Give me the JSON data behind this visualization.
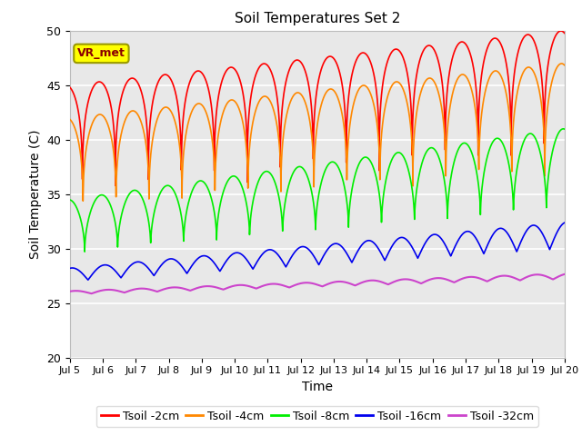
{
  "title": "Soil Temperatures Set 2",
  "xlabel": "Time",
  "ylabel": "Soil Temperature (C)",
  "ylim": [
    20,
    50
  ],
  "xlim_days": [
    5,
    20
  ],
  "background_color": "#e8e8e8",
  "grid_color": "white",
  "annotation_text": "VR_met",
  "annotation_box_color": "#ffff00",
  "annotation_box_edge": "#999900",
  "series": [
    {
      "label": "Tsoil -2cm",
      "color": "#ff0000",
      "lw": 1.2,
      "depth": 2
    },
    {
      "label": "Tsoil -4cm",
      "color": "#ff8800",
      "lw": 1.2,
      "depth": 4
    },
    {
      "label": "Tsoil -8cm",
      "color": "#00ee00",
      "lw": 1.2,
      "depth": 8
    },
    {
      "label": "Tsoil -16cm",
      "color": "#0000ee",
      "lw": 1.2,
      "depth": 16
    },
    {
      "label": "Tsoil -32cm",
      "color": "#cc44cc",
      "lw": 1.5,
      "depth": 32
    }
  ],
  "xtick_days": [
    5,
    6,
    7,
    8,
    9,
    10,
    11,
    12,
    13,
    14,
    15,
    16,
    17,
    18,
    19,
    20
  ],
  "yticks": [
    20,
    25,
    30,
    35,
    40,
    45,
    50
  ]
}
